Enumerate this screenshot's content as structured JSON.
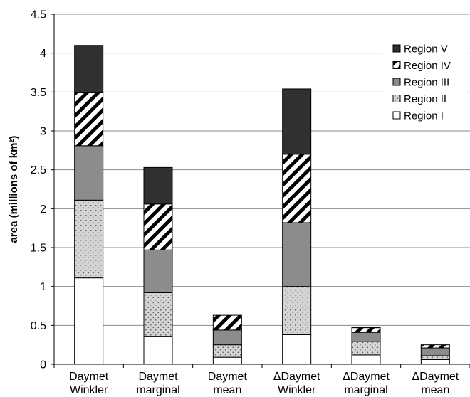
{
  "chart_data": {
    "type": "bar",
    "stacked": true,
    "title": "",
    "xlabel": "",
    "ylabel": "area (millions of km²)",
    "ylim": [
      0,
      4.5
    ],
    "yticks": [
      "0",
      "0.5",
      "1",
      "1.5",
      "2",
      "2.5",
      "3",
      "3.5",
      "4",
      "4.5"
    ],
    "ytick_values": [
      0,
      0.5,
      1,
      1.5,
      2,
      2.5,
      3,
      3.5,
      4,
      4.5
    ],
    "grid": true,
    "legend_position": "top-right",
    "categories": [
      [
        "Daymet",
        "Winkler"
      ],
      [
        "Daymet",
        "marginal"
      ],
      [
        "Daymet",
        "mean"
      ],
      [
        "ΔDaymet",
        "Winkler"
      ],
      [
        "ΔDaymet",
        "marginal"
      ],
      [
        "ΔDaymet",
        "mean"
      ]
    ],
    "series": [
      {
        "name": "Region I",
        "fill": "#ffffff",
        "pattern": "solid",
        "values": [
          1.11,
          0.36,
          0.09,
          0.38,
          0.12,
          0.06
        ]
      },
      {
        "name": "Region II",
        "fill": "#d0d0d0",
        "pattern": "dotted",
        "values": [
          1.0,
          0.56,
          0.16,
          0.62,
          0.17,
          0.05
        ]
      },
      {
        "name": "Region III",
        "fill": "#8c8c8c",
        "pattern": "solid",
        "values": [
          0.7,
          0.55,
          0.19,
          0.82,
          0.12,
          0.1
        ]
      },
      {
        "name": "Region IV",
        "fill": "#ffffff",
        "pattern": "diagonal",
        "values": [
          0.68,
          0.59,
          0.19,
          0.88,
          0.06,
          0.04
        ]
      },
      {
        "name": "Region V",
        "fill": "#303030",
        "pattern": "solid",
        "values": [
          0.61,
          0.47,
          0.0,
          0.84,
          0.01,
          0.0
        ]
      }
    ],
    "legend_order": [
      "Region V",
      "Region IV",
      "Region III",
      "Region II",
      "Region I"
    ]
  }
}
